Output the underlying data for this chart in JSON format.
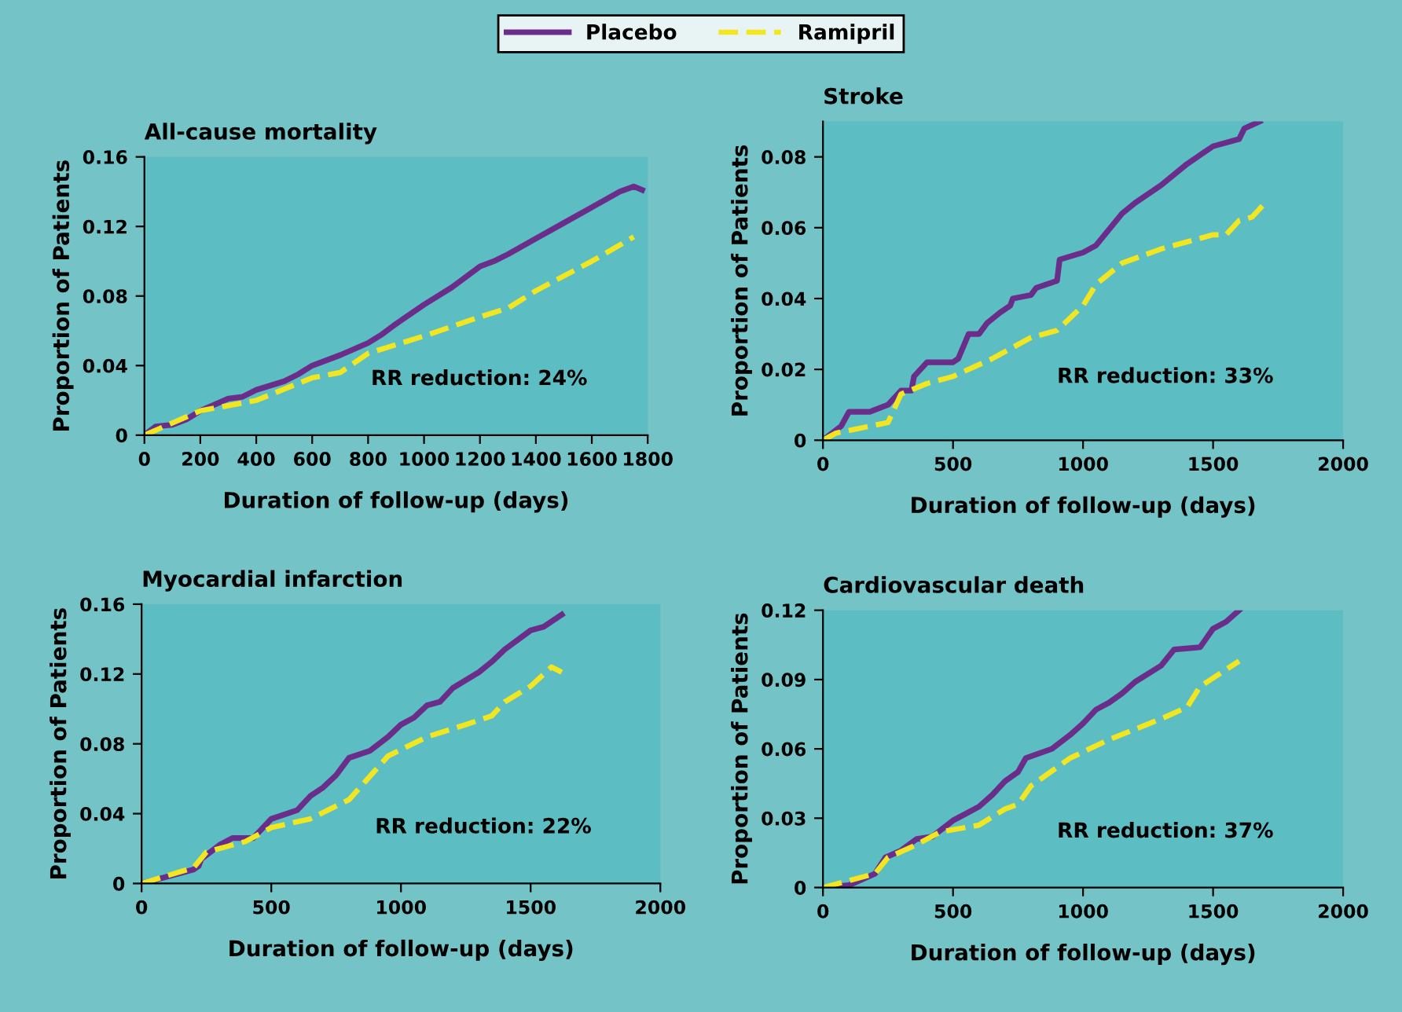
{
  "chart_data": [
    {
      "type": "line",
      "title": "All-cause mortality",
      "xlabel": "Duration of follow-up (days)",
      "ylabel": "Proportion of Patients",
      "legend": "top",
      "xlim": [
        0,
        1800
      ],
      "xticks": [
        0,
        200,
        400,
        600,
        800,
        1000,
        1200,
        1400,
        1600,
        1800
      ],
      "ylim": [
        0,
        0.16
      ],
      "yticks": [
        0,
        0.04,
        0.08,
        0.12,
        0.16
      ],
      "grid": false,
      "annotations": [
        "RR reduction: 24%"
      ],
      "series": [
        {
          "name": "Placebo",
          "color": "#6b2d8a",
          "line_style": "solid",
          "x": [
            0,
            40,
            100,
            150,
            200,
            300,
            350,
            400,
            500,
            550,
            600,
            700,
            800,
            850,
            900,
            1000,
            1100,
            1200,
            1250,
            1300,
            1400,
            1500,
            1600,
            1700,
            1750,
            1780
          ],
          "values": [
            0,
            0.005,
            0.006,
            0.009,
            0.014,
            0.021,
            0.022,
            0.026,
            0.031,
            0.035,
            0.04,
            0.046,
            0.053,
            0.058,
            0.064,
            0.075,
            0.085,
            0.097,
            0.1,
            0.104,
            0.113,
            0.122,
            0.131,
            0.14,
            0.143,
            0.141
          ]
        },
        {
          "name": "Ramipril",
          "color": "#f2e622",
          "line_style": "dashed",
          "x": [
            0,
            200,
            400,
            600,
            700,
            800,
            1000,
            1200,
            1300,
            1400,
            1600,
            1750
          ],
          "values": [
            0,
            0.014,
            0.02,
            0.033,
            0.036,
            0.047,
            0.057,
            0.068,
            0.073,
            0.083,
            0.1,
            0.114
          ]
        }
      ]
    },
    {
      "type": "line",
      "title": "Stroke",
      "xlabel": "Duration of follow-up (days)",
      "ylabel": "Proportion of Patients",
      "xlim": [
        0,
        2000
      ],
      "xticks": [
        0,
        500,
        1000,
        1500,
        2000
      ],
      "ylim": [
        0,
        0.09
      ],
      "yticks": [
        0,
        0.02,
        0.04,
        0.06,
        0.08
      ],
      "grid": false,
      "annotations": [
        "RR reduction: 33%"
      ],
      "series": [
        {
          "color": "#6b2d8a",
          "line_style": "solid",
          "x": [
            0,
            70,
            100,
            180,
            250,
            300,
            340,
            350,
            400,
            500,
            520,
            560,
            600,
            630,
            680,
            720,
            730,
            800,
            820,
            900,
            910,
            1000,
            1050,
            1150,
            1200,
            1300,
            1400,
            1500,
            1600,
            1620,
            1680
          ],
          "values": [
            0,
            0.004,
            0.008,
            0.008,
            0.01,
            0.014,
            0.014,
            0.018,
            0.022,
            0.022,
            0.023,
            0.03,
            0.03,
            0.033,
            0.036,
            0.038,
            0.04,
            0.041,
            0.043,
            0.045,
            0.051,
            0.053,
            0.055,
            0.064,
            0.067,
            0.072,
            0.078,
            0.083,
            0.085,
            0.088,
            0.09
          ]
        },
        {
          "color": "#f2e622",
          "line_style": "dashed",
          "x": [
            0,
            50,
            250,
            300,
            400,
            500,
            650,
            800,
            900,
            1000,
            1050,
            1150,
            1300,
            1500,
            1550,
            1600,
            1650,
            1700
          ],
          "values": [
            0,
            0.002,
            0.005,
            0.013,
            0.016,
            0.018,
            0.023,
            0.029,
            0.031,
            0.038,
            0.044,
            0.05,
            0.054,
            0.058,
            0.058,
            0.062,
            0.063,
            0.067
          ]
        }
      ]
    },
    {
      "type": "line",
      "title": "Myocardial infarction",
      "xlabel": "Duration of follow-up (days)",
      "ylabel": "Proportion of Patients",
      "xlim": [
        0,
        2000
      ],
      "xticks": [
        0,
        500,
        1000,
        1500,
        2000
      ],
      "ylim": [
        0,
        0.16
      ],
      "yticks": [
        0,
        0.04,
        0.08,
        0.12,
        0.16
      ],
      "grid": false,
      "annotations": [
        "RR reduction: 22%"
      ],
      "series": [
        {
          "color": "#6b2d8a",
          "line_style": "solid",
          "x": [
            0,
            200,
            220,
            230,
            300,
            350,
            430,
            500,
            600,
            650,
            700,
            750,
            800,
            880,
            950,
            1000,
            1050,
            1100,
            1150,
            1200,
            1300,
            1350,
            1400,
            1500,
            1550,
            1620
          ],
          "values": [
            0,
            0.008,
            0.01,
            0.014,
            0.022,
            0.026,
            0.026,
            0.037,
            0.042,
            0.05,
            0.055,
            0.062,
            0.072,
            0.076,
            0.084,
            0.091,
            0.095,
            0.102,
            0.104,
            0.112,
            0.121,
            0.127,
            0.134,
            0.145,
            0.147,
            0.154
          ]
        },
        {
          "color": "#f2e622",
          "line_style": "dashed",
          "x": [
            0,
            200,
            250,
            400,
            500,
            650,
            800,
            950,
            1100,
            1250,
            1350,
            1400,
            1500,
            1580,
            1620
          ],
          "values": [
            0,
            0.009,
            0.018,
            0.024,
            0.032,
            0.037,
            0.048,
            0.073,
            0.084,
            0.091,
            0.096,
            0.104,
            0.113,
            0.124,
            0.121
          ]
        }
      ]
    },
    {
      "type": "line",
      "title": "Cardiovascular death",
      "xlabel": "Duration of follow-up (days)",
      "ylabel": "Proportion of Patients",
      "xlim": [
        0,
        2000
      ],
      "xticks": [
        0,
        500,
        1000,
        1500,
        2000
      ],
      "ylim": [
        0,
        0.12
      ],
      "yticks": [
        0,
        0.03,
        0.06,
        0.09,
        0.12
      ],
      "grid": false,
      "annotations": [
        "RR reduction: 37%"
      ],
      "series": [
        {
          "color": "#6b2d8a",
          "line_style": "solid",
          "x": [
            0,
            100,
            200,
            240,
            300,
            360,
            420,
            500,
            550,
            600,
            650,
            700,
            750,
            780,
            880,
            950,
            1000,
            1050,
            1100,
            1150,
            1200,
            1300,
            1350,
            1450,
            1500,
            1550,
            1600
          ],
          "values": [
            0,
            0.001,
            0.006,
            0.013,
            0.016,
            0.021,
            0.022,
            0.029,
            0.032,
            0.035,
            0.04,
            0.046,
            0.05,
            0.056,
            0.06,
            0.066,
            0.071,
            0.077,
            0.08,
            0.084,
            0.089,
            0.096,
            0.103,
            0.104,
            0.112,
            0.115,
            0.12
          ]
        },
        {
          "color": "#f2e622",
          "line_style": "dashed",
          "x": [
            0,
            200,
            250,
            350,
            450,
            600,
            700,
            750,
            800,
            950,
            1100,
            1300,
            1400,
            1450,
            1600
          ],
          "values": [
            0,
            0.006,
            0.013,
            0.018,
            0.024,
            0.027,
            0.034,
            0.036,
            0.044,
            0.056,
            0.064,
            0.073,
            0.078,
            0.087,
            0.098
          ]
        }
      ]
    }
  ]
}
